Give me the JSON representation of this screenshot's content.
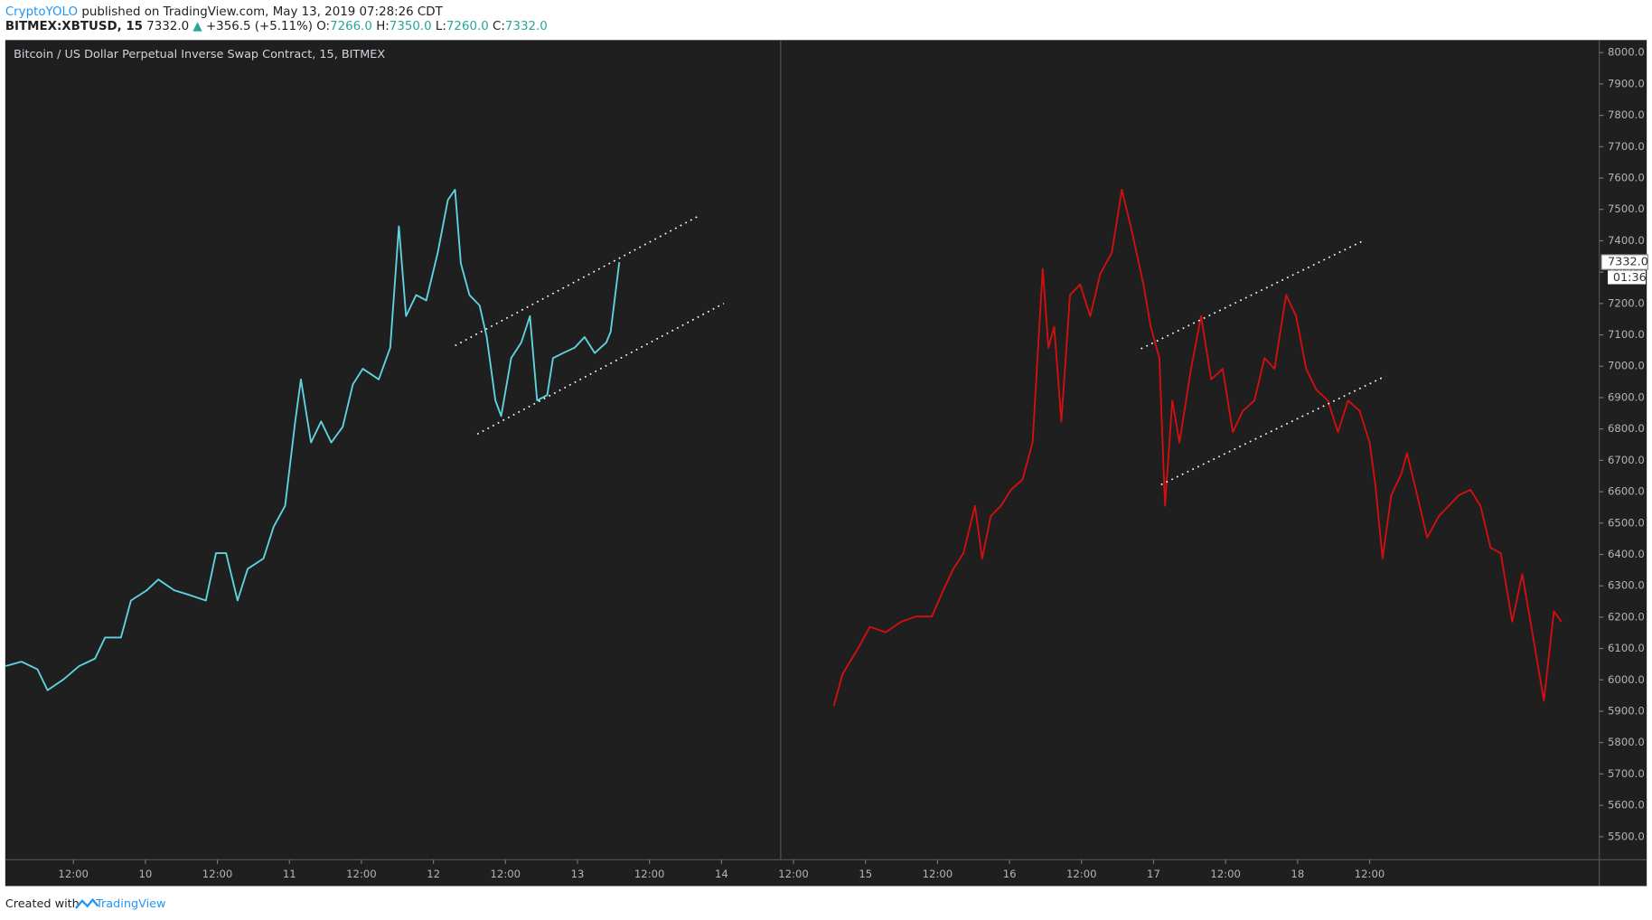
{
  "header": {
    "author": "CryptoYOLO",
    "published": "published on TradingView.com, May 13, 2019 07:28:26 CDT",
    "symbol": "BITMEX:XBTUSD, 15",
    "price": "7332.0",
    "arrow": "▲",
    "change": "+356.5 (+5.11%)",
    "open_label": "O:",
    "open": "7266.0",
    "high_label": "H:",
    "high": "7350.0",
    "low_label": "L:",
    "low": "7260.0",
    "close_label": "C:",
    "close": "7332.0"
  },
  "chart_data": {
    "type": "line",
    "title": "Bitcoin / US Dollar Perpetual Inverse Swap Contract, 15, BITMEX",
    "xlim": [
      9.027,
      20.095
    ],
    "xticks": [
      {
        "value": 9.5,
        "label": "12:00"
      },
      {
        "value": 10,
        "label": "10"
      },
      {
        "value": 10.5,
        "label": "12:00"
      },
      {
        "value": 11,
        "label": "11"
      },
      {
        "value": 11.5,
        "label": "12:00"
      },
      {
        "value": 12,
        "label": "12"
      },
      {
        "value": 12.5,
        "label": "12:00"
      },
      {
        "value": 13,
        "label": "13"
      },
      {
        "value": 13.5,
        "label": "12:00"
      },
      {
        "value": 14,
        "label": "14"
      },
      {
        "value": 14.5,
        "label": "12:00"
      },
      {
        "value": 15,
        "label": "15"
      },
      {
        "value": 15.5,
        "label": "12:00"
      },
      {
        "value": 16,
        "label": "16"
      },
      {
        "value": 16.5,
        "label": "12:00"
      },
      {
        "value": 17,
        "label": "17"
      },
      {
        "value": 17.5,
        "label": "12:00"
      },
      {
        "value": 18,
        "label": "18"
      },
      {
        "value": 18.5,
        "label": "12:00"
      }
    ],
    "ylim": [
      5430,
      8040
    ],
    "yticks": [
      {
        "value": 5500,
        "label": "5500.0"
      },
      {
        "value": 5600,
        "label": "5600.0"
      },
      {
        "value": 5700,
        "label": "5700.0"
      },
      {
        "value": 5800,
        "label": "5800.0"
      },
      {
        "value": 5900,
        "label": "5900.0"
      },
      {
        "value": 6000,
        "label": "6000.0"
      },
      {
        "value": 6100,
        "label": "6100.0"
      },
      {
        "value": 6200,
        "label": "6200.0"
      },
      {
        "value": 6300,
        "label": "6300.0"
      },
      {
        "value": 6400,
        "label": "6400.0"
      },
      {
        "value": 6500,
        "label": "6500.0"
      },
      {
        "value": 6600,
        "label": "6600.0"
      },
      {
        "value": 6700,
        "label": "6700.0"
      },
      {
        "value": 6800,
        "label": "6800.0"
      },
      {
        "value": 6900,
        "label": "6900.0"
      },
      {
        "value": 7000,
        "label": "7000.0"
      },
      {
        "value": 7100,
        "label": "7100.0"
      },
      {
        "value": 7200,
        "label": "7200.0"
      },
      {
        "value": 7300,
        "label": "7300.0"
      },
      {
        "value": 7400,
        "label": "7400.0"
      },
      {
        "value": 7500,
        "label": "7500.0"
      },
      {
        "value": 7600,
        "label": "7600.0"
      },
      {
        "value": 7700,
        "label": "7700.0"
      },
      {
        "value": 7800,
        "label": "7800.0"
      },
      {
        "value": 7900,
        "label": "7900.0"
      },
      {
        "value": 8000,
        "label": "8000.0"
      }
    ],
    "grid": false,
    "last_price": {
      "value": 7332,
      "label": "7332.0"
    },
    "countdown": "01:36",
    "series": [
      {
        "color": "#5fd3e0",
        "x": [
          9.03,
          9.14,
          9.25,
          9.32,
          9.43,
          9.54,
          9.65,
          9.72,
          9.83,
          9.9,
          10.01,
          10.09,
          10.2,
          10.31,
          10.42,
          10.49,
          10.56,
          10.64,
          10.71,
          10.82,
          10.89,
          10.97,
          11.04,
          11.08,
          11.15,
          11.22,
          11.29,
          11.37,
          11.44,
          11.51,
          11.62,
          11.7,
          11.76,
          11.81,
          11.88,
          11.95,
          12.03,
          12.1,
          12.15,
          12.19,
          12.25,
          12.32,
          12.37,
          12.43,
          12.47,
          12.54,
          12.61,
          12.67,
          12.72,
          12.79,
          12.83,
          12.9,
          12.98,
          13.05,
          13.12,
          13.2,
          13.23,
          13.29
        ],
        "values": [
          6044,
          6058,
          6034,
          5967,
          6001,
          6044,
          6068,
          6135,
          6135,
          6253,
          6286,
          6320,
          6286,
          6270,
          6253,
          6404,
          6404,
          6253,
          6354,
          6387,
          6488,
          6555,
          6824,
          6958,
          6757,
          6824,
          6757,
          6807,
          6942,
          6992,
          6958,
          7059,
          7446,
          7160,
          7227,
          7210,
          7362,
          7530,
          7563,
          7328,
          7227,
          7194,
          7093,
          6891,
          6841,
          7026,
          7076,
          7160,
          6891,
          6908,
          7026,
          7042,
          7059,
          7093,
          7042,
          7076,
          7110,
          7332
        ]
      },
      {
        "color": "#d40f0f",
        "x": [
          14.78,
          14.84,
          14.95,
          15.03,
          15.14,
          15.25,
          15.35,
          15.46,
          15.54,
          15.61,
          15.68,
          15.76,
          15.81,
          15.87,
          15.94,
          16.01,
          16.09,
          16.16,
          16.23,
          16.27,
          16.31,
          16.36,
          16.42,
          16.49,
          16.56,
          16.63,
          16.71,
          16.78,
          16.85,
          16.93,
          16.98,
          17.04,
          17.08,
          17.13,
          17.18,
          17.26,
          17.33,
          17.4,
          17.48,
          17.55,
          17.62,
          17.7,
          17.77,
          17.84,
          17.92,
          17.99,
          18.06,
          18.13,
          18.21,
          18.28,
          18.35,
          18.43,
          18.5,
          18.54,
          18.59,
          18.65,
          18.72,
          18.76,
          18.83,
          18.9,
          18.98,
          19.05,
          19.12,
          19.2,
          19.27,
          19.34,
          19.41,
          19.49,
          19.56,
          19.63,
          19.71,
          19.78,
          19.83
        ],
        "values": [
          5917,
          6018,
          6102,
          6169,
          6152,
          6186,
          6202,
          6202,
          6286,
          6354,
          6404,
          6555,
          6387,
          6522,
          6555,
          6606,
          6639,
          6757,
          7311,
          7059,
          7126,
          6824,
          7227,
          7261,
          7160,
          7294,
          7362,
          7563,
          7429,
          7261,
          7126,
          7026,
          6555,
          6891,
          6757,
          6992,
          7160,
          6958,
          6992,
          6790,
          6858,
          6891,
          7026,
          6992,
          7227,
          7160,
          6992,
          6925,
          6891,
          6790,
          6891,
          6858,
          6757,
          6622,
          6387,
          6589,
          6656,
          6723,
          6589,
          6454,
          6522,
          6555,
          6589,
          6606,
          6555,
          6421,
          6404,
          6186,
          6337,
          6152,
          5934,
          6219,
          6186
        ]
      }
    ]
  },
  "footer": {
    "created": "Created with",
    "brand": "TradingView"
  }
}
